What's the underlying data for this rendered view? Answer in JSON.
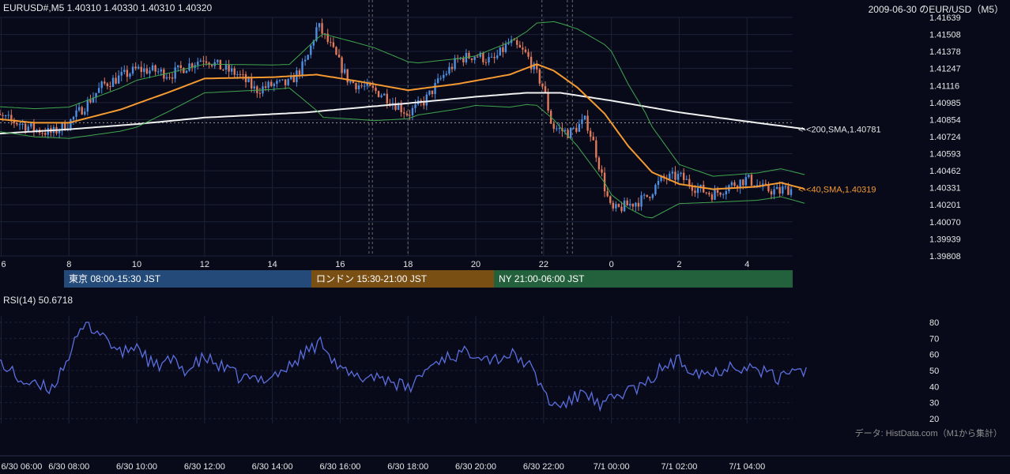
{
  "header": {
    "price_info": "EURUSD#,M5 1.40310 1.40330 1.40310 1.40320",
    "title": "2009-06-30 のEUR/USD（M5）"
  },
  "sessions": [
    {
      "label": "東京 08:00-15:30 JST",
      "color": "#244a79"
    },
    {
      "label": "ロンドン 15:30-21:00 JST",
      "color": "#7a4f14"
    },
    {
      "label": "NY 21:00-06:00 JST",
      "color": "#23603c"
    }
  ],
  "rsi": {
    "label": "RSI(14) 50.6718"
  },
  "credit": "データ: HistData.com（M1から集計）",
  "colors": {
    "background": "#080a1a",
    "bull": "#4e8fe0",
    "bear": "#e07a5a",
    "sma40": "#f49a31",
    "sma200": "#f0f0f0",
    "bollinger": "#3fa64e",
    "rsi": "#5b6fe0"
  },
  "chart_data": [
    {
      "type": "candlestick",
      "title": "EURUSD#,M5",
      "y_ticks": [
        "1.41639",
        "1.41508",
        "1.41378",
        "1.41247",
        "1.41116",
        "1.40985",
        "1.40854",
        "1.40724",
        "1.40593",
        "1.40462",
        "1.40331",
        "1.40201",
        "1.40070",
        "1.39939",
        "1.39808"
      ],
      "x_ticks": [
        "6",
        "8",
        "10",
        "12",
        "14",
        "16",
        "18",
        "20",
        "22",
        "0",
        "2",
        "4"
      ],
      "ylim": [
        1.39808,
        1.41639
      ],
      "last_values": {
        "open": 1.4031,
        "high": 1.4033,
        "low": 1.4031,
        "close": 1.4032
      },
      "close_path": [
        [
          "06:00",
          1.4087
        ],
        [
          "06:30",
          1.4083
        ],
        [
          "07:00",
          1.4078
        ],
        [
          "07:30",
          1.4075
        ],
        [
          "08:00",
          1.4083
        ],
        [
          "08:30",
          1.4097
        ],
        [
          "09:00",
          1.4112
        ],
        [
          "09:30",
          1.4118
        ],
        [
          "10:00",
          1.4124
        ],
        [
          "10:30",
          1.4123
        ],
        [
          "11:00",
          1.412
        ],
        [
          "11:30",
          1.4127
        ],
        [
          "12:00",
          1.4133
        ],
        [
          "12:30",
          1.4125
        ],
        [
          "13:00",
          1.412
        ],
        [
          "13:30",
          1.4108
        ],
        [
          "14:00",
          1.4112
        ],
        [
          "14:30",
          1.4113
        ],
        [
          "15:00",
          1.413
        ],
        [
          "15:20",
          1.4158
        ],
        [
          "15:45",
          1.414
        ],
        [
          "16:15",
          1.4115
        ],
        [
          "16:45",
          1.411
        ],
        [
          "17:15",
          1.4105
        ],
        [
          "17:45",
          1.4095
        ],
        [
          "18:00",
          1.409
        ],
        [
          "18:30",
          1.41
        ],
        [
          "19:00",
          1.4118
        ],
        [
          "19:30",
          1.4132
        ],
        [
          "20:00",
          1.4135
        ],
        [
          "20:30",
          1.413
        ],
        [
          "21:00",
          1.4145
        ],
        [
          "21:30",
          1.4135
        ],
        [
          "22:00",
          1.411
        ],
        [
          "22:15",
          1.408
        ],
        [
          "22:45",
          1.4075
        ],
        [
          "23:15",
          1.4085
        ],
        [
          "23:30",
          1.4065
        ],
        [
          "23:50",
          1.403
        ],
        [
          "00:00",
          1.4015
        ],
        [
          "00:30",
          1.402
        ],
        [
          "01:00",
          1.4025
        ],
        [
          "01:30",
          1.404
        ],
        [
          "02:00",
          1.4042
        ],
        [
          "02:30",
          1.4033
        ],
        [
          "03:00",
          1.4028
        ],
        [
          "03:30",
          1.4035
        ],
        [
          "04:00",
          1.404
        ],
        [
          "04:30",
          1.4032
        ],
        [
          "05:00",
          1.403
        ],
        [
          "05:45",
          1.4032
        ]
      ],
      "series": [
        {
          "name": "SMA 200",
          "label": "<-<200,SMA,1.40781",
          "last": 1.40781
        },
        {
          "name": "SMA 40",
          "label": "<-<40,SMA,1.40319",
          "last": 1.40319
        }
      ]
    },
    {
      "type": "line",
      "title": "RSI(14) 50.6718",
      "y_ticks": [
        "80",
        "70",
        "60",
        "50",
        "40",
        "30",
        "20"
      ],
      "ylim": [
        20,
        80
      ],
      "x_ticks": [
        "6/30 06:00",
        "6/30 08:00",
        "6/30 10:00",
        "6/30 12:00",
        "6/30 14:00",
        "6/30 16:00",
        "6/30 18:00",
        "6/30 20:00",
        "6/30 22:00",
        "7/1 00:00",
        "7/1 02:00",
        "7/1 04:00"
      ],
      "values_path": [
        [
          "06:00",
          55
        ],
        [
          "06:30",
          45
        ],
        [
          "07:00",
          40
        ],
        [
          "07:30",
          39
        ],
        [
          "08:00",
          60
        ],
        [
          "08:30",
          79
        ],
        [
          "09:00",
          73
        ],
        [
          "09:30",
          60
        ],
        [
          "10:00",
          66
        ],
        [
          "10:30",
          52
        ],
        [
          "11:00",
          56
        ],
        [
          "11:30",
          50
        ],
        [
          "12:00",
          58
        ],
        [
          "12:30",
          52
        ],
        [
          "13:00",
          46
        ],
        [
          "13:30",
          44
        ],
        [
          "14:00",
          47
        ],
        [
          "14:30",
          52
        ],
        [
          "15:00",
          62
        ],
        [
          "15:30",
          68
        ],
        [
          "16:00",
          50
        ],
        [
          "16:30",
          45
        ],
        [
          "17:00",
          47
        ],
        [
          "17:30",
          44
        ],
        [
          "18:00",
          38
        ],
        [
          "18:30",
          50
        ],
        [
          "19:00",
          58
        ],
        [
          "19:30",
          60
        ],
        [
          "20:00",
          62
        ],
        [
          "20:30",
          57
        ],
        [
          "21:00",
          60
        ],
        [
          "21:30",
          55
        ],
        [
          "22:00",
          38
        ],
        [
          "22:15",
          28
        ],
        [
          "22:45",
          30
        ],
        [
          "23:15",
          38
        ],
        [
          "23:40",
          26
        ],
        [
          "00:00",
          32
        ],
        [
          "00:30",
          38
        ],
        [
          "01:00",
          40
        ],
        [
          "01:30",
          52
        ],
        [
          "02:00",
          56
        ],
        [
          "02:30",
          50
        ],
        [
          "03:00",
          48
        ],
        [
          "03:30",
          54
        ],
        [
          "04:00",
          52
        ],
        [
          "04:30",
          49
        ],
        [
          "05:00",
          44
        ],
        [
          "05:30",
          48
        ],
        [
          "05:45",
          51
        ]
      ]
    }
  ]
}
